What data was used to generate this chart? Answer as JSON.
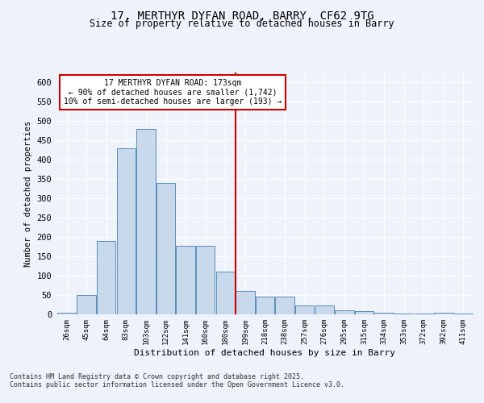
{
  "title_line1": "17, MERTHYR DYFAN ROAD, BARRY, CF62 9TG",
  "title_line2": "Size of property relative to detached houses in Barry",
  "xlabel": "Distribution of detached houses by size in Barry",
  "ylabel": "Number of detached properties",
  "categories": [
    "26sqm",
    "45sqm",
    "64sqm",
    "83sqm",
    "103sqm",
    "122sqm",
    "141sqm",
    "160sqm",
    "180sqm",
    "199sqm",
    "218sqm",
    "238sqm",
    "257sqm",
    "276sqm",
    "295sqm",
    "315sqm",
    "334sqm",
    "353sqm",
    "372sqm",
    "392sqm",
    "411sqm"
  ],
  "values": [
    5,
    50,
    190,
    430,
    480,
    340,
    178,
    178,
    110,
    60,
    45,
    45,
    22,
    22,
    11,
    8,
    5,
    3,
    3,
    5,
    3
  ],
  "bar_color": "#c9d9ec",
  "bar_edge_color": "#5b8db8",
  "vline_color": "#cc0000",
  "vline_index": 8.5,
  "annotation_line1": "17 MERTHYR DYFAN ROAD: 173sqm",
  "annotation_line2": "← 90% of detached houses are smaller (1,742)",
  "annotation_line3": "10% of semi-detached houses are larger (193) →",
  "annotation_box_color": "#cc0000",
  "ylim": [
    0,
    625
  ],
  "yticks": [
    0,
    50,
    100,
    150,
    200,
    250,
    300,
    350,
    400,
    450,
    500,
    550,
    600
  ],
  "background_color": "#eef2fa",
  "grid_color": "#ffffff",
  "footer_line1": "Contains HM Land Registry data © Crown copyright and database right 2025.",
  "footer_line2": "Contains public sector information licensed under the Open Government Licence v3.0."
}
